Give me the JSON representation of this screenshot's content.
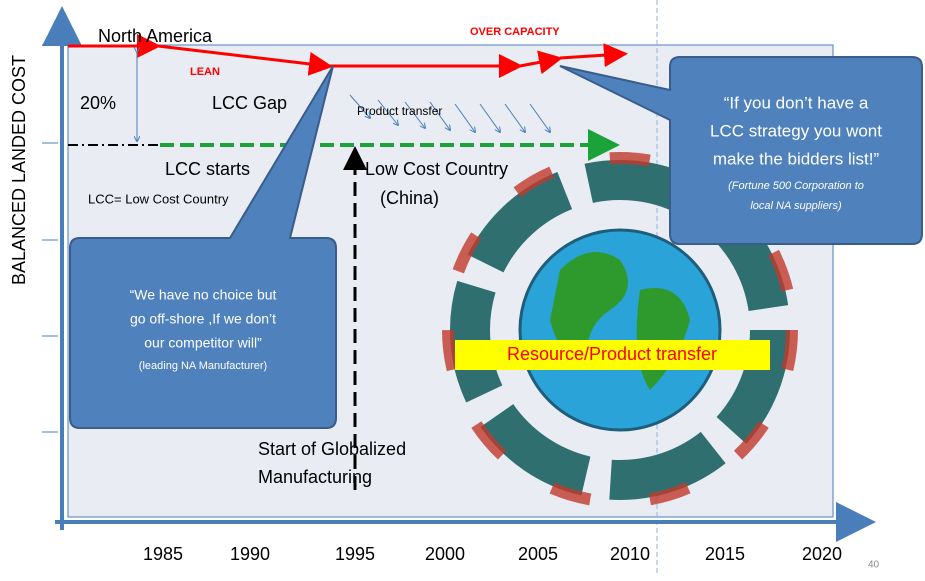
{
  "axis": {
    "y_label": "BALANCED LANDED COST",
    "x_ticks": [
      1985,
      1990,
      1995,
      2000,
      2005,
      2010,
      2015,
      2020
    ]
  },
  "labels": {
    "north_america": "North America",
    "lean": "LEAN",
    "over_capacity": "OVER CAPACITY",
    "gap_percent": "20%",
    "lcc_gap": "LCC Gap",
    "product_transfer": "Product transfer",
    "lcc_starts": "LCC starts",
    "lcc_definition": "LCC= Low Cost Country",
    "low_cost_country": "Low Cost Country",
    "china": "(China)",
    "start_globalized": [
      "Start of Globalized",
      "Manufacturing"
    ],
    "resource_transfer": "Resource/Product transfer"
  },
  "callouts": [
    {
      "quote": [
        "“We have no choice but",
        "go off-shore ,If we don’t",
        "our competitor will”"
      ],
      "source": "(leading NA Manufacturer)"
    },
    {
      "quote": [
        "“If you don’t have a",
        "LCC strategy you wont",
        "make the bidders list!”"
      ],
      "source": [
        "(Fortune 500 Corporation to",
        "local NA suppliers)"
      ]
    }
  ],
  "slide_number": "40"
}
